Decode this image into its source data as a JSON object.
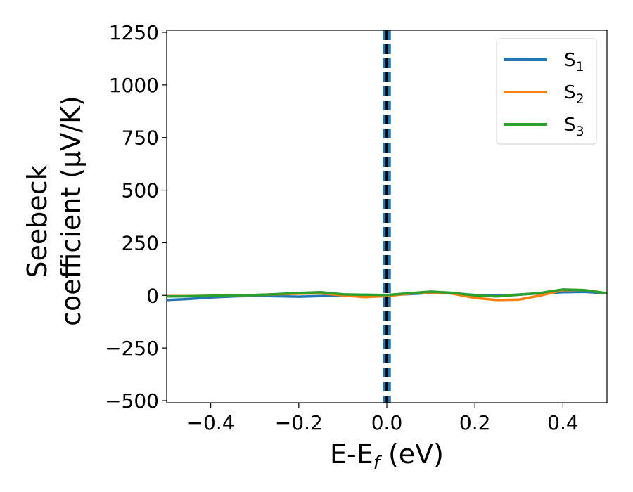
{
  "chart_data": {
    "type": "line",
    "xlabel": {
      "main": "E-E",
      "sub": "f",
      "unit": " (eV)"
    },
    "ylabel": {
      "line1": "Seebeck",
      "line2": "coefficient  (μV/K)"
    },
    "xlim": [
      -0.5,
      0.5
    ],
    "ylim": [
      -510,
      1260
    ],
    "x_ticks": [
      -0.4,
      -0.2,
      0.0,
      0.2,
      0.4
    ],
    "x_tick_labels": [
      "−0.4",
      "−0.2",
      "0.0",
      "0.2",
      "0.4"
    ],
    "y_ticks": [
      -500,
      -250,
      0,
      250,
      500,
      750,
      1000,
      1250
    ],
    "y_tick_labels": [
      "−500",
      "−250",
      "0",
      "250",
      "500",
      "750",
      "1000",
      "1250"
    ],
    "grid": false,
    "legend_position": "top-right",
    "vlines": [
      {
        "x": 0.0,
        "color": "#000000",
        "style": "dashed"
      },
      {
        "x": -0.006,
        "color": "#1f77b4",
        "style": "dashed"
      },
      {
        "x": 0.006,
        "color": "#1f77b4",
        "style": "dashed"
      }
    ],
    "series": [
      {
        "name": "S",
        "sub": "1",
        "color": "#1f77b4",
        "x": [
          -0.5,
          -0.45,
          -0.4,
          -0.35,
          -0.3,
          -0.25,
          -0.2,
          -0.15,
          -0.1,
          -0.05,
          0.0,
          0.05,
          0.1,
          0.15,
          0.2,
          0.25,
          0.3,
          0.35,
          0.4,
          0.45,
          0.5
        ],
        "y": [
          -22,
          -17,
          -10,
          -5,
          -2,
          -4,
          -6,
          -3,
          0,
          1,
          2,
          6,
          12,
          10,
          2,
          -2,
          4,
          10,
          15,
          17,
          10
        ]
      },
      {
        "name": "S",
        "sub": "2",
        "color": "#ff7f0e",
        "x": [
          -0.5,
          -0.45,
          -0.4,
          -0.35,
          -0.3,
          -0.25,
          -0.2,
          -0.15,
          -0.1,
          -0.05,
          0.0,
          0.05,
          0.1,
          0.15,
          0.2,
          0.25,
          0.3,
          0.35,
          0.4,
          0.45,
          0.5
        ],
        "y": [
          -3,
          -3,
          -2,
          0,
          2,
          5,
          8,
          10,
          0,
          -8,
          -3,
          8,
          15,
          8,
          -12,
          -22,
          -20,
          0,
          25,
          25,
          10
        ]
      },
      {
        "name": "S",
        "sub": "3",
        "color": "#2ca02c",
        "x": [
          -0.5,
          -0.45,
          -0.4,
          -0.35,
          -0.3,
          -0.25,
          -0.2,
          -0.15,
          -0.1,
          -0.05,
          0.0,
          0.05,
          0.1,
          0.15,
          0.2,
          0.25,
          0.3,
          0.35,
          0.4,
          0.45,
          0.5
        ],
        "y": [
          -5,
          -4,
          -2,
          0,
          2,
          6,
          12,
          15,
          5,
          3,
          2,
          10,
          18,
          12,
          0,
          -5,
          3,
          12,
          28,
          25,
          10
        ]
      }
    ]
  }
}
